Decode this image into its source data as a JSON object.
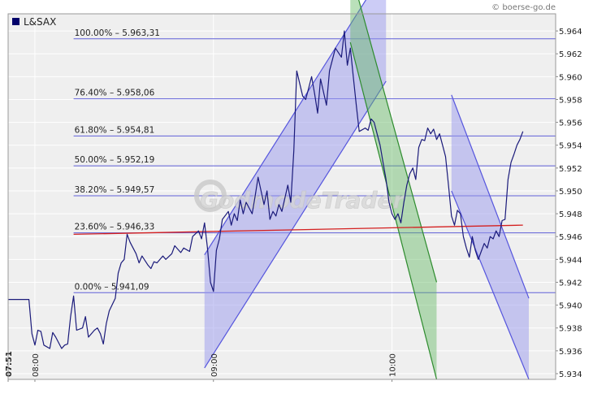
{
  "source_label": "© boerse-go.de",
  "watermark": "GodmodeTrader",
  "colors": {
    "plot_bg": "#efefef",
    "grid": "#ffffff",
    "price_line": "#1a1a7a",
    "fib_line": "#6060d8",
    "channel_fill": "#9999ee",
    "channel_edge": "#5555dd",
    "green_fill": "#66bb66",
    "green_edge": "#2e8b2e",
    "trend_red": "#d42020",
    "legend_swatch": "#00006a"
  },
  "chart_data": {
    "type": "line",
    "title": "",
    "xlabel": "",
    "ylabel": "",
    "legend": [
      {
        "name": "L&SAX",
        "position": "top-left"
      }
    ],
    "ylim": [
      5.9335,
      5.9655
    ],
    "y_ticks": [
      "5.934",
      "5.936",
      "5.938",
      "5.940",
      "5.942",
      "5.944",
      "5.946",
      "5.948",
      "5.950",
      "5.952",
      "5.954",
      "5.956",
      "5.958",
      "5.960",
      "5.962",
      "5.964"
    ],
    "xlim": [
      "07:51",
      "10:55"
    ],
    "x_ticks": [
      "07:51",
      "08:00",
      "09:00",
      "10:00"
    ],
    "grid": true,
    "series": [
      {
        "name": "L&SAX",
        "x": [
          "07:51",
          "07:55",
          "07:58",
          "07:59",
          "08:00",
          "08:01",
          "08:02",
          "08:03",
          "08:05",
          "08:06",
          "08:07",
          "08:09",
          "08:10",
          "08:11",
          "08:12",
          "08:13",
          "08:14",
          "08:16",
          "08:17",
          "08:18",
          "08:20",
          "08:21",
          "08:22",
          "08:23",
          "08:24",
          "08:25",
          "08:27",
          "08:28",
          "08:29",
          "08:30",
          "08:31",
          "08:32",
          "08:34",
          "08:35",
          "08:36",
          "08:38",
          "08:39",
          "08:40",
          "08:41",
          "08:43",
          "08:44",
          "08:46",
          "08:47",
          "08:49",
          "08:50",
          "08:52",
          "08:53",
          "08:55",
          "08:56",
          "08:57",
          "08:58",
          "08:59",
          "09:00",
          "09:01",
          "09:02",
          "09:03",
          "09:05",
          "09:06",
          "09:07",
          "09:08",
          "09:09",
          "09:10",
          "09:11",
          "09:13",
          "09:14",
          "09:15",
          "09:17",
          "09:18",
          "09:19",
          "09:20",
          "09:21",
          "09:22",
          "09:23",
          "09:25",
          "09:26",
          "09:27",
          "09:28",
          "09:30",
          "09:31",
          "09:32",
          "09:33",
          "09:34",
          "09:35",
          "09:36",
          "09:38",
          "09:39",
          "09:40",
          "09:41",
          "09:43",
          "09:44",
          "09:45",
          "09:46",
          "09:47",
          "09:48",
          "09:49",
          "09:51",
          "09:52",
          "09:53",
          "09:54",
          "09:55",
          "09:56",
          "09:57",
          "09:58",
          "09:59",
          "10:00",
          "10:01",
          "10:02",
          "10:03",
          "10:04",
          "10:05",
          "10:06",
          "10:07",
          "10:08",
          "10:09",
          "10:10",
          "10:11",
          "10:12",
          "10:13",
          "10:14",
          "10:15",
          "10:16",
          "10:17",
          "10:18",
          "10:19",
          "10:20",
          "10:21",
          "10:22",
          "10:23",
          "10:24",
          "10:25",
          "10:26",
          "10:27",
          "10:28",
          "10:29",
          "10:30",
          "10:31",
          "10:32",
          "10:33",
          "10:34",
          "10:35",
          "10:36",
          "10:37",
          "10:38",
          "10:39",
          "10:40",
          "10:41",
          "10:42",
          "10:43",
          "10:44"
        ],
        "values": [
          5.9405,
          5.9405,
          5.9405,
          5.9375,
          5.9365,
          5.9378,
          5.9377,
          5.9365,
          5.9362,
          5.9376,
          5.9372,
          5.9362,
          5.9365,
          5.9366,
          5.939,
          5.9408,
          5.9378,
          5.938,
          5.939,
          5.9372,
          5.9378,
          5.938,
          5.9375,
          5.9366,
          5.9384,
          5.9395,
          5.9406,
          5.9428,
          5.9437,
          5.944,
          5.9462,
          5.9455,
          5.9445,
          5.9437,
          5.9443,
          5.9435,
          5.9432,
          5.9438,
          5.9437,
          5.9443,
          5.944,
          5.9445,
          5.9452,
          5.9446,
          5.945,
          5.9447,
          5.946,
          5.9465,
          5.9458,
          5.9472,
          5.945,
          5.942,
          5.9412,
          5.9448,
          5.9458,
          5.9475,
          5.9482,
          5.947,
          5.948,
          5.9474,
          5.9492,
          5.948,
          5.949,
          5.948,
          5.9495,
          5.9512,
          5.9488,
          5.95,
          5.9475,
          5.9482,
          5.9478,
          5.9488,
          5.9482,
          5.9505,
          5.949,
          5.9535,
          5.9605,
          5.9583,
          5.958,
          5.959,
          5.96,
          5.9585,
          5.9568,
          5.9598,
          5.9575,
          5.9605,
          5.9615,
          5.9625,
          5.9617,
          5.964,
          5.961,
          5.9625,
          5.96,
          5.9575,
          5.9552,
          5.9555,
          5.9553,
          5.9563,
          5.956,
          5.955,
          5.954,
          5.9525,
          5.951,
          5.949,
          5.948,
          5.9475,
          5.948,
          5.9472,
          5.949,
          5.9505,
          5.9515,
          5.952,
          5.951,
          5.9538,
          5.9545,
          5.9544,
          5.9555,
          5.955,
          5.9554,
          5.9545,
          5.955,
          5.954,
          5.953,
          5.9505,
          5.9478,
          5.947,
          5.9483,
          5.948,
          5.946,
          5.945,
          5.9442,
          5.946,
          5.9448,
          5.944,
          5.9447,
          5.9454,
          5.945,
          5.946,
          5.9458,
          5.9465,
          5.946,
          5.9474,
          5.9475,
          5.951,
          5.9525,
          5.9532,
          5.954,
          5.9545,
          5.9552
        ]
      }
    ],
    "fibonacci_levels": [
      {
        "label": "100.00% – 5.963,31",
        "value": 5.96331
      },
      {
        "label": "76.40% – 5.958,06",
        "value": 5.95806
      },
      {
        "label": "61.80% – 5.954,81",
        "value": 5.95481
      },
      {
        "label": "50.00% – 5.952,19",
        "value": 5.95219
      },
      {
        "label": "38.20% – 5.949,57",
        "value": 5.94957
      },
      {
        "label": "23.60% – 5.946,33",
        "value": 5.94633
      },
      {
        "label": "0.00% – 5.941,09",
        "value": 5.94109
      }
    ],
    "trendline": {
      "name": "red trend line",
      "from": {
        "x": "08:13",
        "y": 5.9462
      },
      "to": {
        "x": "10:44",
        "y": 5.947
      }
    },
    "channels": [
      {
        "name": "rising channel",
        "color": "blue",
        "lower": [
          {
            "x": "08:57",
            "y": 5.9345
          },
          {
            "x": "09:58",
            "y": 5.9596
          }
        ],
        "upper": [
          {
            "x": "08:57",
            "y": 5.9444
          },
          {
            "x": "09:58",
            "y": 5.9695
          }
        ]
      },
      {
        "name": "falling green channel",
        "color": "green",
        "lower": [
          {
            "x": "09:46",
            "y": 5.963
          },
          {
            "x": "10:15",
            "y": 5.9335
          }
        ],
        "upper": [
          {
            "x": "09:46",
            "y": 5.9694
          },
          {
            "x": "10:15",
            "y": 5.942
          }
        ]
      },
      {
        "name": "falling channel",
        "color": "blue",
        "lower": [
          {
            "x": "10:20",
            "y": 5.95
          },
          {
            "x": "10:46",
            "y": 5.9335
          }
        ],
        "upper": [
          {
            "x": "10:20",
            "y": 5.9584
          },
          {
            "x": "10:46",
            "y": 5.9406
          }
        ]
      }
    ]
  }
}
